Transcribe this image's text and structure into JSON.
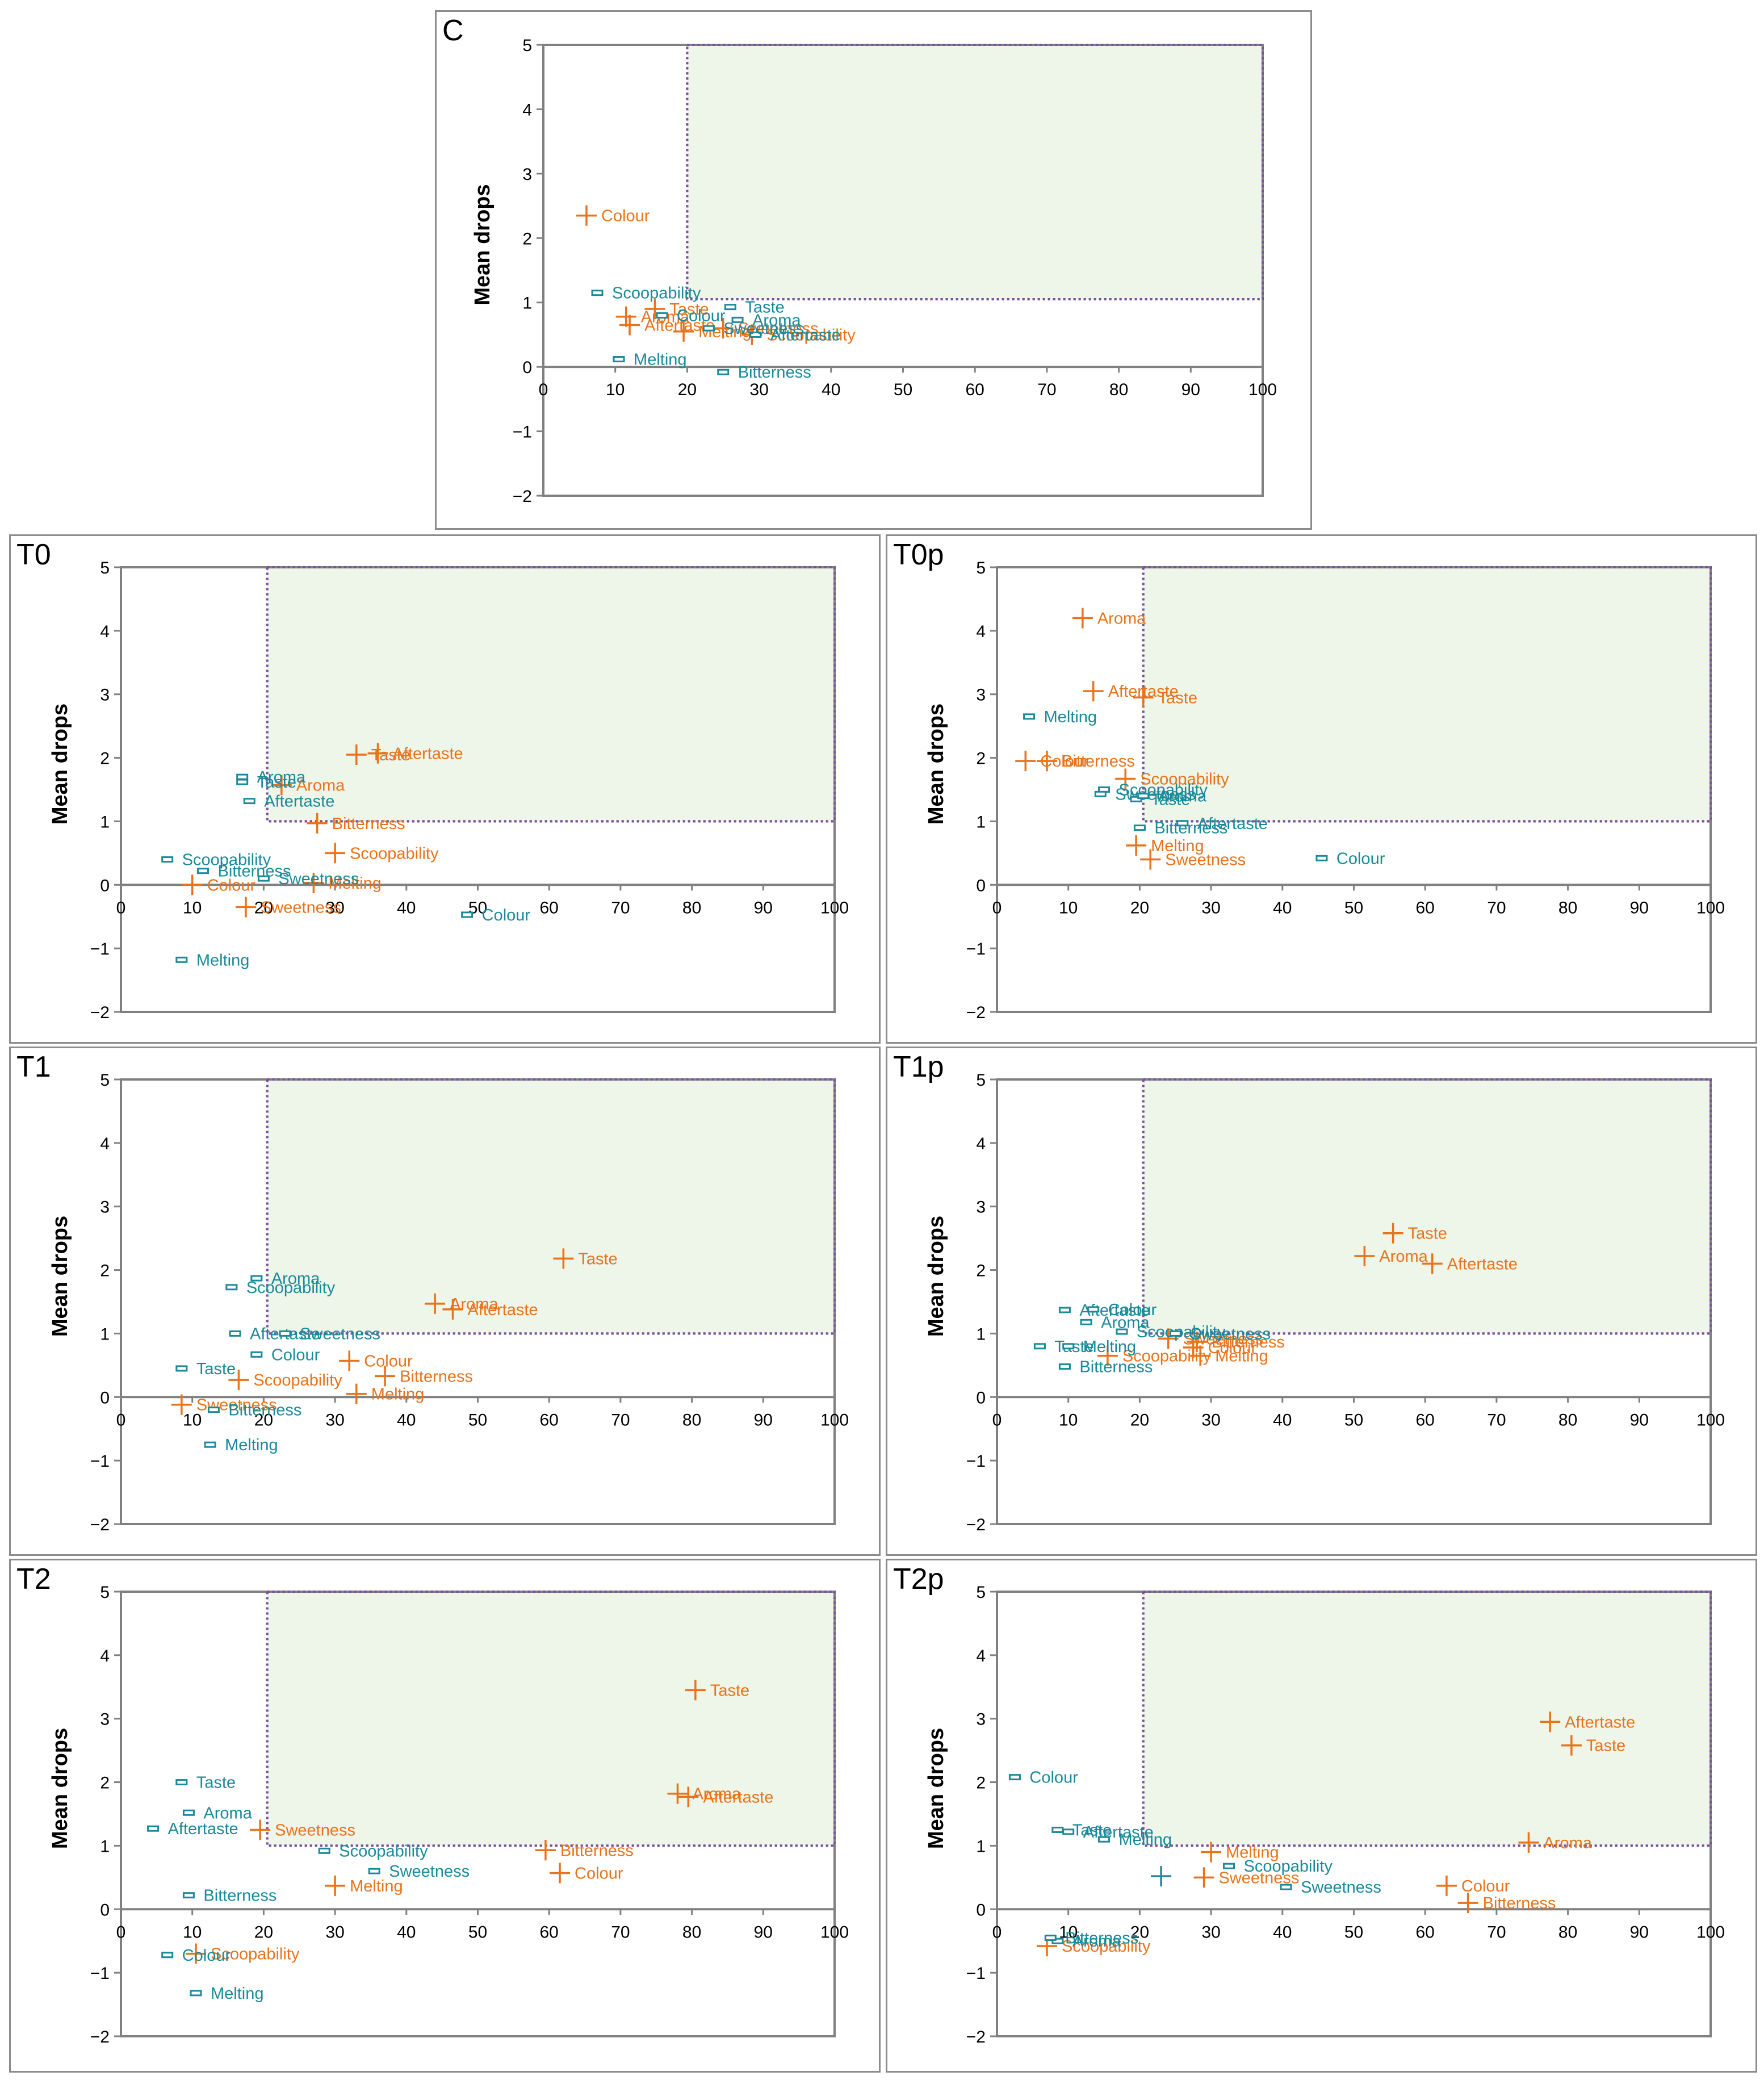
{
  "colors": {
    "orange": "#E8731A",
    "teal": "#1A8A9A",
    "region_fill": "#EEF5E9",
    "region_border": "#7A4FA0",
    "axis": "#808080"
  },
  "legend_note": "orange + markers and teal - markers, labelled by attribute",
  "chart_data": [
    {
      "id": "C",
      "type": "scatter",
      "title": "C",
      "ylabel": "Mean drops",
      "xlabel": "",
      "xlim": [
        0,
        100
      ],
      "ylim": [
        -2,
        5
      ],
      "xticks": [
        "0",
        "10",
        "20",
        "30",
        "40",
        "50",
        "60",
        "70",
        "80",
        "90",
        "100"
      ],
      "yticks": [
        "−2",
        "−1",
        "0",
        "1",
        "2",
        "3",
        "4",
        "5"
      ],
      "region": {
        "x": [
          20,
          100
        ],
        "y": [
          1.05,
          5
        ]
      },
      "series": [
        {
          "name": "orange",
          "marker": "plus",
          "points": [
            {
              "label": "Colour",
              "x": 6,
              "y": 2.35
            },
            {
              "label": "Taste",
              "x": 15.5,
              "y": 0.9
            },
            {
              "label": "Aroma",
              "x": 11.5,
              "y": 0.78
            },
            {
              "label": "Aftertaste",
              "x": 12,
              "y": 0.65
            },
            {
              "label": "Melting",
              "x": 19.5,
              "y": 0.55
            },
            {
              "label": "Sweetness",
              "x": 25,
              "y": 0.6
            },
            {
              "label": "Scoopability",
              "x": 29,
              "y": 0.5
            }
          ]
        },
        {
          "name": "teal",
          "marker": "dash",
          "points": [
            {
              "label": "Scoopability",
              "x": 7.5,
              "y": 1.15
            },
            {
              "label": "Colour",
              "x": 16.5,
              "y": 0.8
            },
            {
              "label": "Taste",
              "x": 26,
              "y": 0.93
            },
            {
              "label": "Aroma",
              "x": 27,
              "y": 0.73
            },
            {
              "label": "Aftertaste",
              "x": 29.5,
              "y": 0.5
            },
            {
              "label": "Sweetness",
              "x": 23,
              "y": 0.6
            },
            {
              "label": "Melting",
              "x": 10.5,
              "y": 0.12
            },
            {
              "label": "Bitterness",
              "x": 25,
              "y": -0.08
            }
          ]
        }
      ]
    },
    {
      "id": "T0",
      "type": "scatter",
      "title": "T0",
      "ylabel": "Mean drops",
      "xlabel": "",
      "xlim": [
        0,
        100
      ],
      "ylim": [
        -2,
        5
      ],
      "xticks": [
        "0",
        "10",
        "20",
        "30",
        "40",
        "50",
        "60",
        "70",
        "80",
        "90",
        "100"
      ],
      "yticks": [
        "−2",
        "−1",
        "0",
        "1",
        "2",
        "3",
        "4",
        "5"
      ],
      "region": {
        "x": [
          20.5,
          100
        ],
        "y": [
          1,
          5
        ]
      },
      "series": [
        {
          "name": "orange",
          "marker": "plus",
          "points": [
            {
              "label": "Taste",
              "x": 33,
              "y": 2.05
            },
            {
              "label": "Aftertaste",
              "x": 36,
              "y": 2.07
            },
            {
              "label": "Aroma",
              "x": 22.5,
              "y": 1.57
            },
            {
              "label": "Bitterness",
              "x": 27.5,
              "y": 0.97
            },
            {
              "label": "Scoopability",
              "x": 30,
              "y": 0.5
            },
            {
              "label": "Colour",
              "x": 10,
              "y": 0
            },
            {
              "label": "Melting",
              "x": 27,
              "y": 0.03
            },
            {
              "label": "Sweetness",
              "x": 17.5,
              "y": -0.35
            }
          ]
        },
        {
          "name": "teal",
          "marker": "dash",
          "points": [
            {
              "label": "Aroma",
              "x": 17,
              "y": 1.7
            },
            {
              "label": "Taste",
              "x": 17,
              "y": 1.62
            },
            {
              "label": "Aftertaste",
              "x": 18,
              "y": 1.32
            },
            {
              "label": "Scoopability",
              "x": 6.5,
              "y": 0.4
            },
            {
              "label": "Bitterness",
              "x": 11.5,
              "y": 0.22
            },
            {
              "label": "Sweetness",
              "x": 20,
              "y": 0.1
            },
            {
              "label": "Colour",
              "x": 48.5,
              "y": -0.47
            },
            {
              "label": "Melting",
              "x": 8.5,
              "y": -1.18
            }
          ]
        }
      ]
    },
    {
      "id": "T0p",
      "type": "scatter",
      "title": "T0p",
      "ylabel": "Mean drops",
      "xlabel": "",
      "xlim": [
        0,
        100
      ],
      "ylim": [
        -2,
        5
      ],
      "xticks": [
        "0",
        "10",
        "20",
        "30",
        "40",
        "50",
        "60",
        "70",
        "80",
        "90",
        "100"
      ],
      "yticks": [
        "−2",
        "−1",
        "0",
        "1",
        "2",
        "3",
        "4",
        "5"
      ],
      "region": {
        "x": [
          20.5,
          100
        ],
        "y": [
          1,
          5
        ]
      },
      "series": [
        {
          "name": "orange",
          "marker": "plus",
          "points": [
            {
              "label": "Aroma",
              "x": 12,
              "y": 4.2
            },
            {
              "label": "Aftertaste",
              "x": 13.5,
              "y": 3.05
            },
            {
              "label": "Taste",
              "x": 20.5,
              "y": 2.95
            },
            {
              "label": "Colour",
              "x": 4,
              "y": 1.95
            },
            {
              "label": "Bitterness",
              "x": 7,
              "y": 1.95
            },
            {
              "label": "Scoopability",
              "x": 18,
              "y": 1.67
            },
            {
              "label": "Melting",
              "x": 19.5,
              "y": 0.62
            },
            {
              "label": "Sweetness",
              "x": 21.5,
              "y": 0.4
            }
          ]
        },
        {
          "name": "teal",
          "marker": "dash",
          "points": [
            {
              "label": "Melting",
              "x": 4.5,
              "y": 2.65
            },
            {
              "label": "Scoopability",
              "x": 15,
              "y": 1.5
            },
            {
              "label": "Sweetness",
              "x": 14.5,
              "y": 1.43
            },
            {
              "label": "Taste",
              "x": 19.5,
              "y": 1.35
            },
            {
              "label": "Aroma",
              "x": 20.5,
              "y": 1.4
            },
            {
              "label": "Aftertaste",
              "x": 26,
              "y": 0.97
            },
            {
              "label": "Bitterness",
              "x": 20,
              "y": 0.9
            },
            {
              "label": "Colour",
              "x": 45.5,
              "y": 0.42
            }
          ]
        }
      ]
    },
    {
      "id": "T1",
      "type": "scatter",
      "title": "T1",
      "ylabel": "Mean drops",
      "xlabel": "",
      "xlim": [
        0,
        100
      ],
      "ylim": [
        -2,
        5
      ],
      "xticks": [
        "0",
        "10",
        "20",
        "30",
        "40",
        "50",
        "60",
        "70",
        "80",
        "90",
        "100"
      ],
      "yticks": [
        "−2",
        "−1",
        "0",
        "1",
        "2",
        "3",
        "4",
        "5"
      ],
      "region": {
        "x": [
          20.5,
          100
        ],
        "y": [
          1,
          5
        ]
      },
      "series": [
        {
          "name": "orange",
          "marker": "plus",
          "points": [
            {
              "label": "Taste",
              "x": 62,
              "y": 2.18
            },
            {
              "label": "Aroma",
              "x": 44,
              "y": 1.47
            },
            {
              "label": "Aftertaste",
              "x": 46.5,
              "y": 1.38
            },
            {
              "label": "Colour",
              "x": 32,
              "y": 0.57
            },
            {
              "label": "Bitterness",
              "x": 37,
              "y": 0.33
            },
            {
              "label": "Scoopability",
              "x": 16.5,
              "y": 0.27
            },
            {
              "label": "Melting",
              "x": 33,
              "y": 0.05
            },
            {
              "label": "Sweetness",
              "x": 8.5,
              "y": -0.12
            }
          ]
        },
        {
          "name": "teal",
          "marker": "dash",
          "points": [
            {
              "label": "Aroma",
              "x": 19,
              "y": 1.87
            },
            {
              "label": "Scoopability",
              "x": 15.5,
              "y": 1.73
            },
            {
              "label": "Aftertaste",
              "x": 16,
              "y": 1
            },
            {
              "label": "Sweetness",
              "x": 23,
              "y": 1
            },
            {
              "label": "Colour",
              "x": 19,
              "y": 0.67
            },
            {
              "label": "Taste",
              "x": 8.5,
              "y": 0.45
            },
            {
              "label": "Bitterness",
              "x": 13,
              "y": -0.2
            },
            {
              "label": "Melting",
              "x": 12.5,
              "y": -0.75
            }
          ]
        }
      ]
    },
    {
      "id": "T1p",
      "type": "scatter",
      "title": "T1p",
      "ylabel": "Mean drops",
      "xlabel": "",
      "xlim": [
        0,
        100
      ],
      "ylim": [
        -2,
        5
      ],
      "xticks": [
        "0",
        "10",
        "20",
        "30",
        "40",
        "50",
        "60",
        "70",
        "80",
        "90",
        "100"
      ],
      "yticks": [
        "−2",
        "−1",
        "0",
        "1",
        "2",
        "3",
        "4",
        "5"
      ],
      "region": {
        "x": [
          20.5,
          100
        ],
        "y": [
          1,
          5
        ]
      },
      "series": [
        {
          "name": "orange",
          "marker": "plus",
          "points": [
            {
              "label": "Taste",
              "x": 55.5,
              "y": 2.58
            },
            {
              "label": "Aroma",
              "x": 51.5,
              "y": 2.22
            },
            {
              "label": "Aftertaste",
              "x": 61,
              "y": 2.1
            },
            {
              "label": "Sweetness",
              "x": 24,
              "y": 0.92
            },
            {
              "label": "Bitterness",
              "x": 28,
              "y": 0.87
            },
            {
              "label": "Colour",
              "x": 27.5,
              "y": 0.78
            },
            {
              "label": "Melting",
              "x": 28.5,
              "y": 0.65
            },
            {
              "label": "Scoopability",
              "x": 15.5,
              "y": 0.65
            }
          ]
        },
        {
          "name": "teal",
          "marker": "dash",
          "points": [
            {
              "label": "Aftertaste",
              "x": 9.5,
              "y": 1.37
            },
            {
              "label": "Colour",
              "x": 13.5,
              "y": 1.38
            },
            {
              "label": "Aroma",
              "x": 12.5,
              "y": 1.18
            },
            {
              "label": "Scoopability",
              "x": 17.5,
              "y": 1.03
            },
            {
              "label": "Sweetness",
              "x": 25,
              "y": 1
            },
            {
              "label": "Taste",
              "x": 6,
              "y": 0.8
            },
            {
              "label": "Melting",
              "x": 10,
              "y": 0.8
            },
            {
              "label": "Bitterness",
              "x": 9.5,
              "y": 0.48
            }
          ]
        }
      ]
    },
    {
      "id": "T2",
      "type": "scatter",
      "title": "T2",
      "ylabel": "Mean drops",
      "xlabel": "",
      "xlim": [
        0,
        100
      ],
      "ylim": [
        -2,
        5
      ],
      "xticks": [
        "0",
        "10",
        "20",
        "30",
        "40",
        "50",
        "60",
        "70",
        "80",
        "90",
        "100"
      ],
      "yticks": [
        "−2",
        "−1",
        "0",
        "1",
        "2",
        "3",
        "4",
        "5"
      ],
      "region": {
        "x": [
          20.5,
          100
        ],
        "y": [
          1,
          5
        ]
      },
      "series": [
        {
          "name": "orange",
          "marker": "plus",
          "points": [
            {
              "label": "Taste",
              "x": 80.5,
              "y": 3.45
            },
            {
              "label": "Aroma",
              "x": 78,
              "y": 1.82
            },
            {
              "label": "Aftertaste",
              "x": 79.5,
              "y": 1.77
            },
            {
              "label": "Sweetness",
              "x": 19.5,
              "y": 1.25
            },
            {
              "label": "Bitterness",
              "x": 59.5,
              "y": 0.93
            },
            {
              "label": "Colour",
              "x": 61.5,
              "y": 0.57
            },
            {
              "label": "Melting",
              "x": 30,
              "y": 0.37
            },
            {
              "label": "Scoopability",
              "x": 10.5,
              "y": -0.7
            }
          ]
        },
        {
          "name": "teal",
          "marker": "dash",
          "points": [
            {
              "label": "Taste",
              "x": 8.5,
              "y": 2
            },
            {
              "label": "Aroma",
              "x": 9.5,
              "y": 1.52
            },
            {
              "label": "Aftertaste",
              "x": 4.5,
              "y": 1.27
            },
            {
              "label": "Scoopability",
              "x": 28.5,
              "y": 0.92
            },
            {
              "label": "Sweetness",
              "x": 35.5,
              "y": 0.6
            },
            {
              "label": "Bitterness",
              "x": 9.5,
              "y": 0.22
            },
            {
              "label": "Colour",
              "x": 6.5,
              "y": -0.72
            },
            {
              "label": "Melting",
              "x": 10.5,
              "y": -1.32
            }
          ]
        }
      ]
    },
    {
      "id": "T2p",
      "type": "scatter",
      "title": "T2p",
      "ylabel": "Mean drops",
      "xlabel": "",
      "xlim": [
        0,
        100
      ],
      "ylim": [
        -2,
        5
      ],
      "xticks": [
        "0",
        "10",
        "20",
        "30",
        "40",
        "50",
        "60",
        "70",
        "80",
        "90",
        "100"
      ],
      "yticks": [
        "−2",
        "−1",
        "0",
        "1",
        "2",
        "3",
        "4",
        "5"
      ],
      "region": {
        "x": [
          20.5,
          100
        ],
        "y": [
          1,
          5
        ]
      },
      "series": [
        {
          "name": "orange",
          "marker": "plus",
          "points": [
            {
              "label": "Aftertaste",
              "x": 77.5,
              "y": 2.95
            },
            {
              "label": "Taste",
              "x": 80.5,
              "y": 2.58
            },
            {
              "label": "Aroma",
              "x": 74.5,
              "y": 1.05
            },
            {
              "label": "Melting",
              "x": 30,
              "y": 0.9
            },
            {
              "label": "Sweetness",
              "x": 29,
              "y": 0.5
            },
            {
              "label": "Colour",
              "x": 63,
              "y": 0.37
            },
            {
              "label": "Bitterness",
              "x": 66,
              "y": 0.1
            },
            {
              "label": "Scoopability",
              "x": 7,
              "y": -0.58
            }
          ]
        },
        {
          "name": "teal",
          "marker": "dash",
          "points": [
            {
              "label": "Colour",
              "x": 2.5,
              "y": 2.08
            },
            {
              "label": "Taste",
              "x": 8.5,
              "y": 1.25
            },
            {
              "label": "Aftertaste",
              "x": 10,
              "y": 1.22
            },
            {
              "label": "Melting",
              "x": 15,
              "y": 1.1
            },
            {
              "label": "Scoopability",
              "x": 32.5,
              "y": 0.68
            },
            {
              "label": "Sweetness",
              "x": 40.5,
              "y": 0.35
            },
            {
              "label": "Aroma",
              "x": 8.5,
              "y": -0.5
            },
            {
              "label": "Bitterness",
              "x": 7.5,
              "y": -0.45
            }
          ],
          "extra_plus": {
            "x": 23,
            "y": 0.52
          }
        }
      ]
    }
  ]
}
